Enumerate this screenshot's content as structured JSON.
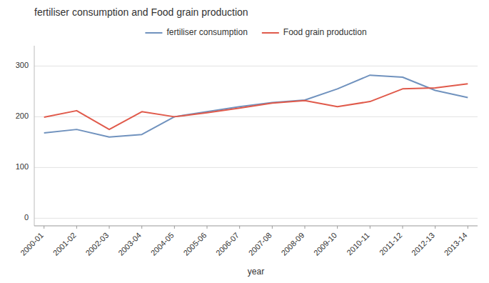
{
  "chart_data": {
    "type": "line",
    "title": "fertiliser consumption and Food grain production",
    "x_label": "year",
    "categories": [
      "2000-01",
      "2001-02",
      "2002-03",
      "2003-04",
      "2004-05",
      "2005-06",
      "2006-07",
      "2007-08",
      "2008-09",
      "2009-10",
      "2010-11",
      "2011-12",
      "2012-13",
      "2013-14"
    ],
    "series": [
      {
        "name": "fertiliser consumption",
        "color": "#7092be",
        "values": [
          168,
          175,
          160,
          165,
          200,
          210,
          220,
          228,
          233,
          255,
          282,
          278,
          252,
          238
        ]
      },
      {
        "name": "Food grain production",
        "color": "#e05a4b",
        "values": [
          199,
          212,
          175,
          210,
          200,
          208,
          217,
          227,
          232,
          220,
          230,
          255,
          257,
          265
        ]
      }
    ],
    "ylim": [
      -15,
      340
    ],
    "yticks": [
      0,
      100,
      200,
      300
    ],
    "grid": true,
    "legend": "top"
  }
}
